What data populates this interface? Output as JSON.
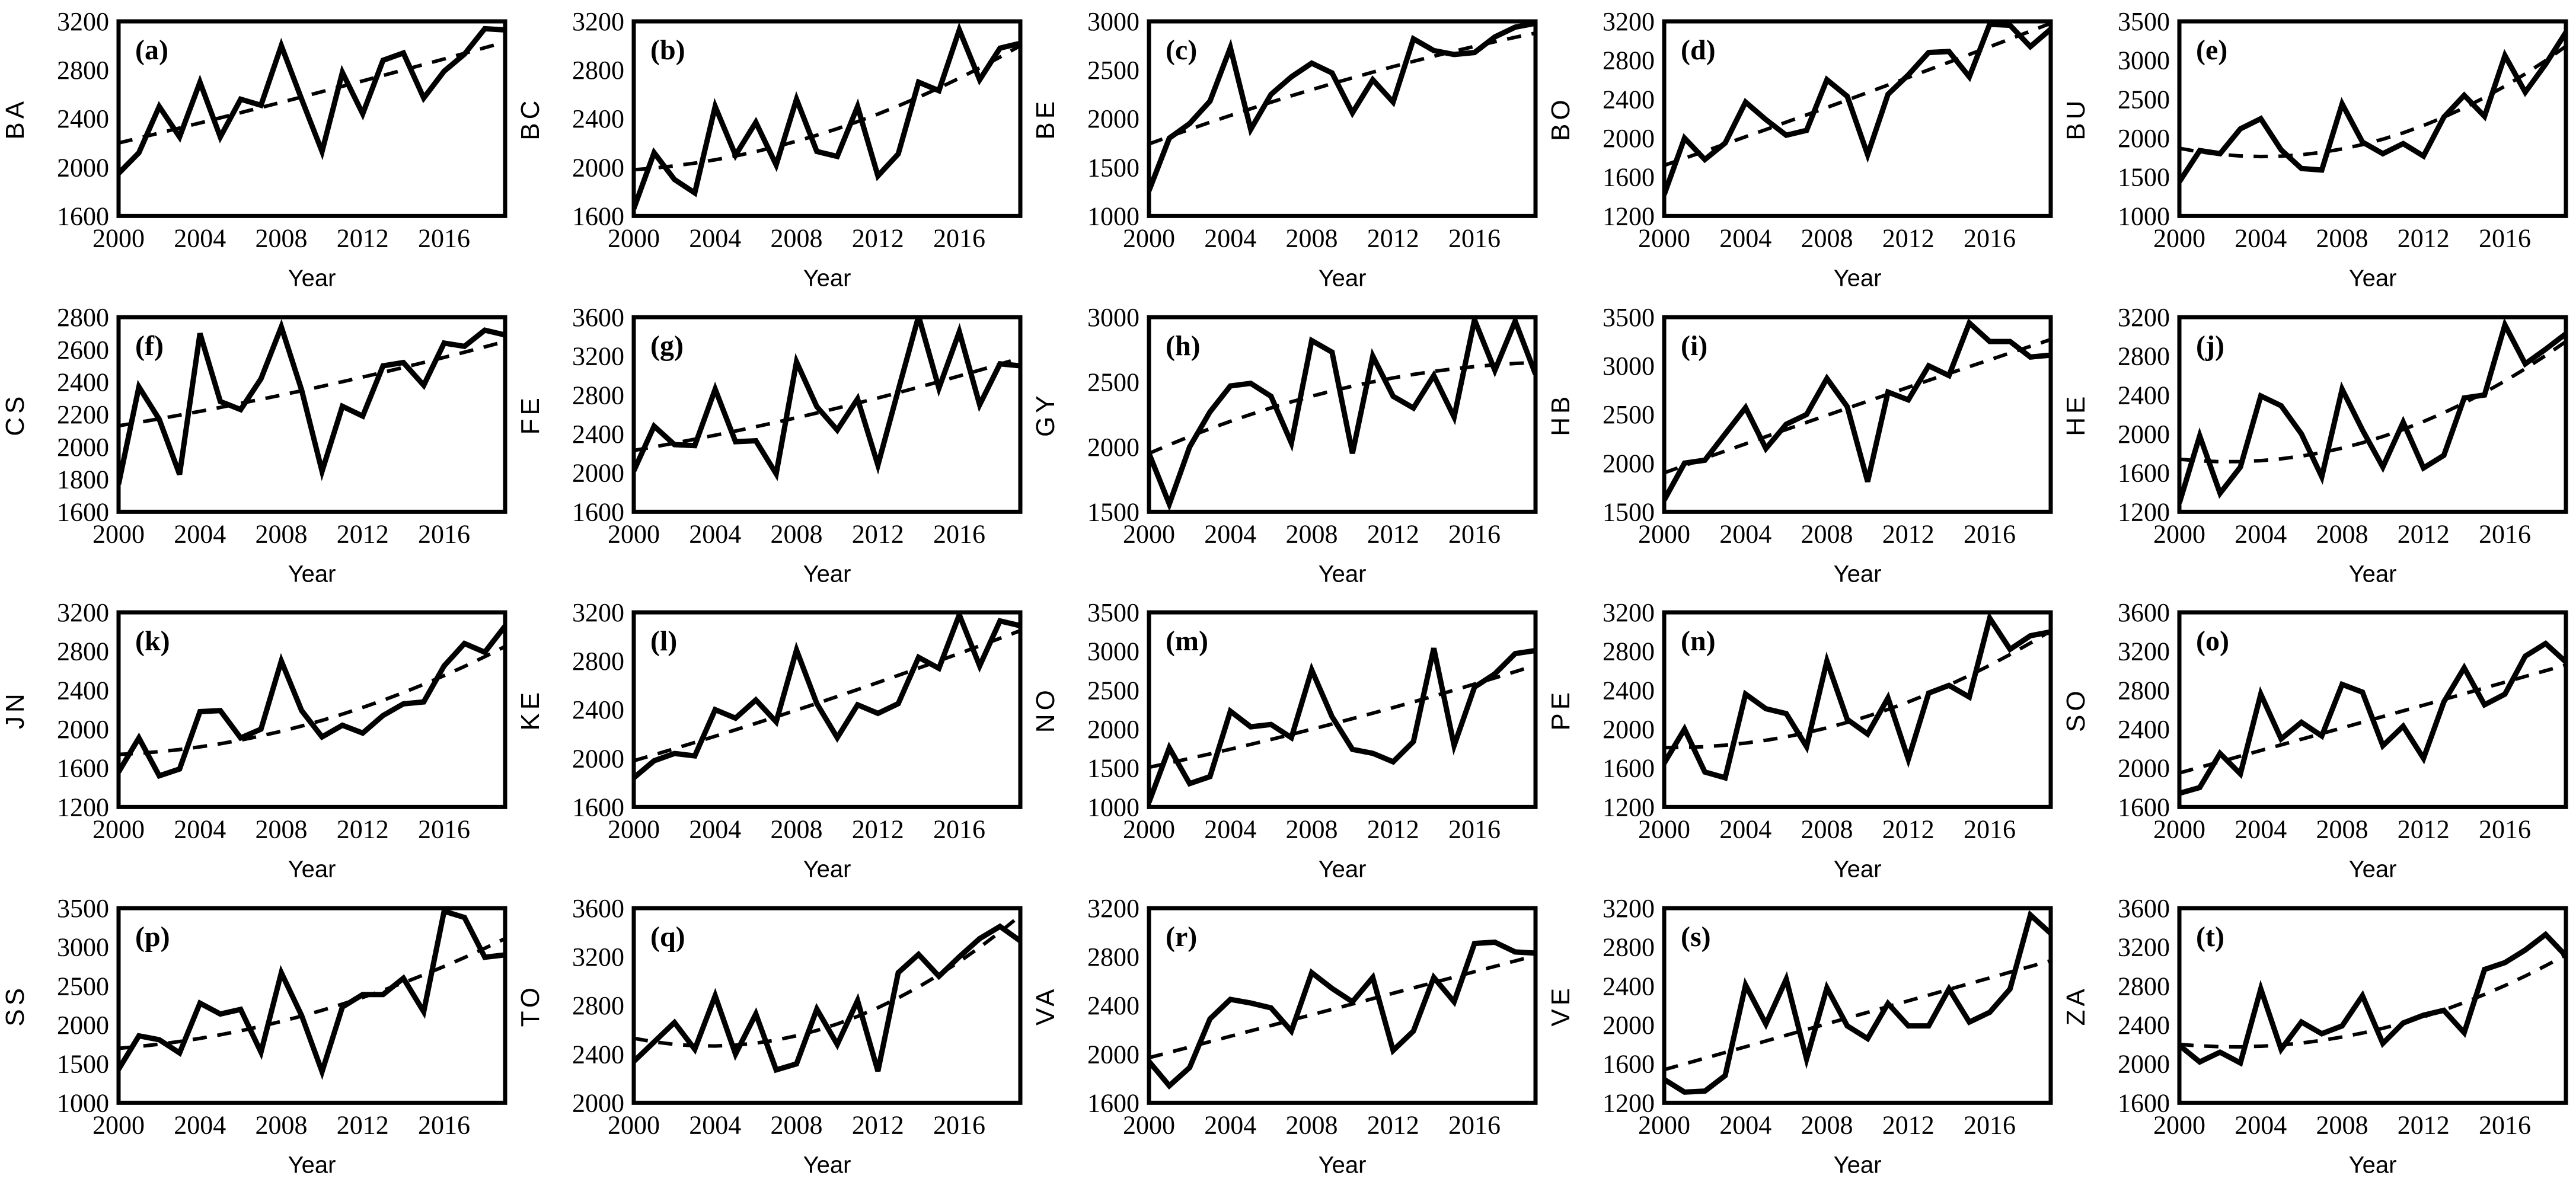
{
  "figure": {
    "background": "#ffffff",
    "line_color": "#000000",
    "trend_style": "dashed",
    "xlabel": "Year",
    "x_ticks": [
      2000,
      2004,
      2008,
      2012,
      2016
    ],
    "years": [
      2000,
      2001,
      2002,
      2003,
      2004,
      2005,
      2006,
      2007,
      2008,
      2009,
      2010,
      2011,
      2012,
      2013,
      2014,
      2015,
      2016,
      2017,
      2018,
      2019
    ]
  },
  "chart_data": [
    {
      "type": "line",
      "panel": "(a)",
      "ylabel": "BA",
      "ylim": [
        1600,
        3200
      ],
      "yticks": [
        1600,
        2000,
        2400,
        2800,
        3200
      ],
      "values": [
        1950,
        2120,
        2500,
        2250,
        2700,
        2250,
        2560,
        2510,
        3000,
        2560,
        2130,
        2780,
        2440,
        2880,
        2940,
        2570,
        2790,
        2930,
        3140,
        3130
      ],
      "trend": {
        "start": 2200,
        "mid": 2600,
        "end": 3030
      }
    },
    {
      "type": "line",
      "panel": "(b)",
      "ylabel": "BC",
      "ylim": [
        1600,
        3200
      ],
      "yticks": [
        1600,
        2000,
        2400,
        2800,
        3200
      ],
      "values": [
        1660,
        2120,
        1900,
        1790,
        2500,
        2100,
        2370,
        2020,
        2560,
        2130,
        2090,
        2500,
        1930,
        2110,
        2700,
        2630,
        3130,
        2720,
        2980,
        3020
      ],
      "trend": {
        "start": 1980,
        "mid": 2290,
        "end": 3000
      }
    },
    {
      "type": "line",
      "panel": "(c)",
      "ylabel": "BE",
      "ylim": [
        1000,
        3000
      ],
      "yticks": [
        1000,
        1500,
        2000,
        2500,
        3000
      ],
      "values": [
        1260,
        1800,
        1950,
        2180,
        2730,
        1890,
        2250,
        2430,
        2570,
        2470,
        2060,
        2400,
        2170,
        2820,
        2700,
        2660,
        2680,
        2840,
        2940,
        2980
      ],
      "trend": {
        "start": 1740,
        "mid": 2390,
        "end": 2880
      }
    },
    {
      "type": "line",
      "panel": "(d)",
      "ylabel": "BO",
      "ylim": [
        1200,
        3200
      ],
      "yticks": [
        1200,
        1600,
        2000,
        2400,
        2800,
        3200
      ],
      "values": [
        1420,
        2000,
        1780,
        1950,
        2370,
        2190,
        2030,
        2080,
        2600,
        2430,
        1830,
        2450,
        2650,
        2880,
        2890,
        2630,
        3170,
        3160,
        2940,
        3120
      ],
      "trend": {
        "start": 1720,
        "mid": 2430,
        "end": 3180
      }
    },
    {
      "type": "line",
      "panel": "(e)",
      "ylabel": "BU",
      "ylim": [
        1000,
        3500
      ],
      "yticks": [
        1000,
        1500,
        2000,
        2500,
        3000,
        3500
      ],
      "values": [
        1440,
        1840,
        1800,
        2120,
        2250,
        1850,
        1610,
        1590,
        2440,
        1950,
        1800,
        1930,
        1770,
        2270,
        2550,
        2280,
        3060,
        2590,
        2950,
        3360
      ],
      "trend": {
        "start": 1870,
        "mid": 1950,
        "end": 3180
      }
    },
    {
      "type": "line",
      "panel": "(f)",
      "ylabel": "CS",
      "ylim": [
        1600,
        2800
      ],
      "yticks": [
        1600,
        1800,
        2000,
        2200,
        2400,
        2600,
        2800
      ],
      "values": [
        1770,
        2370,
        2170,
        1830,
        2700,
        2280,
        2230,
        2420,
        2740,
        2350,
        1850,
        2250,
        2190,
        2500,
        2520,
        2380,
        2640,
        2620,
        2720,
        2690
      ],
      "trend": {
        "start": 2130,
        "mid": 2360,
        "end": 2650
      }
    },
    {
      "type": "line",
      "panel": "(g)",
      "ylabel": "FE",
      "ylim": [
        1600,
        3600
      ],
      "yticks": [
        1600,
        2000,
        2400,
        2800,
        3200,
        3600
      ],
      "values": [
        2020,
        2480,
        2290,
        2280,
        2860,
        2320,
        2330,
        1990,
        3140,
        2680,
        2440,
        2760,
        2080,
        2850,
        3610,
        2870,
        3450,
        2700,
        3120,
        3100
      ],
      "trend": {
        "start": 2230,
        "mid": 2640,
        "end": 3180
      }
    },
    {
      "type": "line",
      "panel": "(h)",
      "ylabel": "GY",
      "ylim": [
        1500,
        3000
      ],
      "yticks": [
        1500,
        2000,
        2500,
        3000
      ],
      "values": [
        1950,
        1560,
        2000,
        2270,
        2470,
        2490,
        2390,
        2030,
        2820,
        2730,
        1950,
        2700,
        2390,
        2300,
        2550,
        2230,
        2980,
        2590,
        2970,
        2560
      ],
      "trend": {
        "start": 1950,
        "mid": 2450,
        "end": 2650
      }
    },
    {
      "type": "line",
      "panel": "(i)",
      "ylabel": "HB",
      "ylim": [
        1500,
        3500
      ],
      "yticks": [
        1500,
        2000,
        2500,
        3000,
        3500
      ],
      "values": [
        1620,
        2000,
        2030,
        2300,
        2570,
        2150,
        2400,
        2500,
        2870,
        2580,
        1810,
        2730,
        2650,
        3000,
        2900,
        3440,
        3250,
        3250,
        3090,
        3110
      ],
      "trend": {
        "start": 1900,
        "mid": 2600,
        "end": 3270
      }
    },
    {
      "type": "line",
      "panel": "(j)",
      "ylabel": "HE",
      "ylim": [
        1200,
        3200
      ],
      "yticks": [
        1200,
        1600,
        2000,
        2400,
        2800,
        3200
      ],
      "values": [
        1290,
        1980,
        1390,
        1660,
        2390,
        2290,
        2000,
        1560,
        2460,
        2040,
        1660,
        2120,
        1650,
        1780,
        2370,
        2400,
        3120,
        2720,
        2870,
        3030
      ],
      "trend": {
        "start": 1740,
        "mid": 1940,
        "end": 2950
      }
    },
    {
      "type": "line",
      "panel": "(k)",
      "ylabel": "JN",
      "ylim": [
        1200,
        3200
      ],
      "yticks": [
        1200,
        1600,
        2000,
        2400,
        2800,
        3200
      ],
      "values": [
        1560,
        1910,
        1520,
        1590,
        2180,
        2190,
        1910,
        2000,
        2700,
        2190,
        1920,
        2040,
        1960,
        2140,
        2260,
        2280,
        2650,
        2880,
        2790,
        3060
      ],
      "trend": {
        "start": 1740,
        "mid": 2060,
        "end": 2850
      }
    },
    {
      "type": "line",
      "panel": "(l)",
      "ylabel": "KE",
      "ylim": [
        1600,
        3200
      ],
      "yticks": [
        1600,
        2000,
        2400,
        2800,
        3200
      ],
      "values": [
        1840,
        1980,
        2040,
        2020,
        2400,
        2330,
        2480,
        2300,
        2890,
        2450,
        2170,
        2440,
        2370,
        2450,
        2830,
        2740,
        3180,
        2760,
        3130,
        3090
      ],
      "trend": {
        "start": 1980,
        "mid": 2480,
        "end": 3050
      }
    },
    {
      "type": "line",
      "panel": "(m)",
      "ylabel": "NO",
      "ylim": [
        1000,
        3500
      ],
      "yticks": [
        1000,
        1500,
        2000,
        2500,
        3000,
        3500
      ],
      "values": [
        1060,
        1760,
        1300,
        1390,
        2230,
        2030,
        2060,
        1890,
        2760,
        2160,
        1740,
        1690,
        1580,
        1840,
        3040,
        1790,
        2540,
        2710,
        2970,
        3010
      ],
      "trend": {
        "start": 1510,
        "mid": 2100,
        "end": 2820
      }
    },
    {
      "type": "line",
      "panel": "(n)",
      "ylabel": "PE",
      "ylim": [
        1200,
        3200
      ],
      "yticks": [
        1200,
        1600,
        2000,
        2400,
        2800,
        3200
      ],
      "values": [
        1650,
        2000,
        1560,
        1500,
        2360,
        2210,
        2160,
        1820,
        2700,
        2100,
        1950,
        2320,
        1690,
        2370,
        2450,
        2330,
        3140,
        2820,
        2960,
        3000
      ],
      "trend": {
        "start": 1810,
        "mid": 2100,
        "end": 3010
      }
    },
    {
      "type": "line",
      "panel": "(o)",
      "ylabel": "SO",
      "ylim": [
        1600,
        3600
      ],
      "yticks": [
        1600,
        2000,
        2400,
        2800,
        3200,
        3600
      ],
      "values": [
        1740,
        1800,
        2150,
        1940,
        2760,
        2300,
        2470,
        2330,
        2860,
        2780,
        2230,
        2430,
        2100,
        2680,
        3030,
        2650,
        2760,
        3150,
        3280,
        3090
      ],
      "trend": {
        "start": 1950,
        "mid": 2500,
        "end": 3060
      }
    },
    {
      "type": "line",
      "panel": "(p)",
      "ylabel": "SS",
      "ylim": [
        1000,
        3500
      ],
      "yticks": [
        1000,
        1500,
        2000,
        2500,
        3000,
        3500
      ],
      "values": [
        1430,
        1860,
        1810,
        1640,
        2280,
        2140,
        2200,
        1650,
        2670,
        2120,
        1400,
        2230,
        2390,
        2390,
        2600,
        2170,
        3460,
        3380,
        2870,
        2900
      ],
      "trend": {
        "start": 1700,
        "mid": 2150,
        "end": 3110
      }
    },
    {
      "type": "line",
      "panel": "(q)",
      "ylabel": "TO",
      "ylim": [
        2000,
        3600
      ],
      "yticks": [
        2000,
        2400,
        2800,
        3200,
        3600
      ],
      "values": [
        2340,
        2500,
        2660,
        2440,
        2880,
        2400,
        2730,
        2270,
        2320,
        2770,
        2480,
        2840,
        2260,
        3070,
        3220,
        3040,
        3200,
        3350,
        3450,
        3330
      ],
      "trend": {
        "start": 2530,
        "mid": 2620,
        "end": 3540
      }
    },
    {
      "type": "line",
      "panel": "(r)",
      "ylabel": "VA",
      "ylim": [
        1600,
        3200
      ],
      "yticks": [
        1600,
        2000,
        2400,
        2800,
        3200
      ],
      "values": [
        1940,
        1740,
        1890,
        2290,
        2450,
        2420,
        2380,
        2190,
        2670,
        2540,
        2430,
        2630,
        2030,
        2190,
        2630,
        2430,
        2910,
        2920,
        2840,
        2830
      ],
      "trend": {
        "start": 1970,
        "mid": 2390,
        "end": 2810
      }
    },
    {
      "type": "line",
      "panel": "(s)",
      "ylabel": "VE",
      "ylim": [
        1200,
        3200
      ],
      "yticks": [
        1200,
        1600,
        2000,
        2400,
        2800,
        3200
      ],
      "values": [
        1440,
        1310,
        1320,
        1480,
        2410,
        2010,
        2470,
        1650,
        2380,
        1990,
        1860,
        2220,
        1990,
        1990,
        2370,
        2030,
        2130,
        2370,
        3130,
        2940
      ],
      "trend": {
        "start": 1540,
        "mid": 2100,
        "end": 2660
      }
    },
    {
      "type": "line",
      "panel": "(t)",
      "ylabel": "ZA",
      "ylim": [
        1600,
        3600
      ],
      "yticks": [
        1600,
        2000,
        2400,
        2800,
        3200,
        3600
      ],
      "values": [
        2190,
        2020,
        2120,
        2010,
        2770,
        2150,
        2430,
        2310,
        2390,
        2700,
        2210,
        2420,
        2500,
        2550,
        2320,
        2970,
        3040,
        3170,
        3330,
        3110
      ],
      "trend": {
        "start": 2200,
        "mid": 2340,
        "end": 3120
      }
    }
  ]
}
